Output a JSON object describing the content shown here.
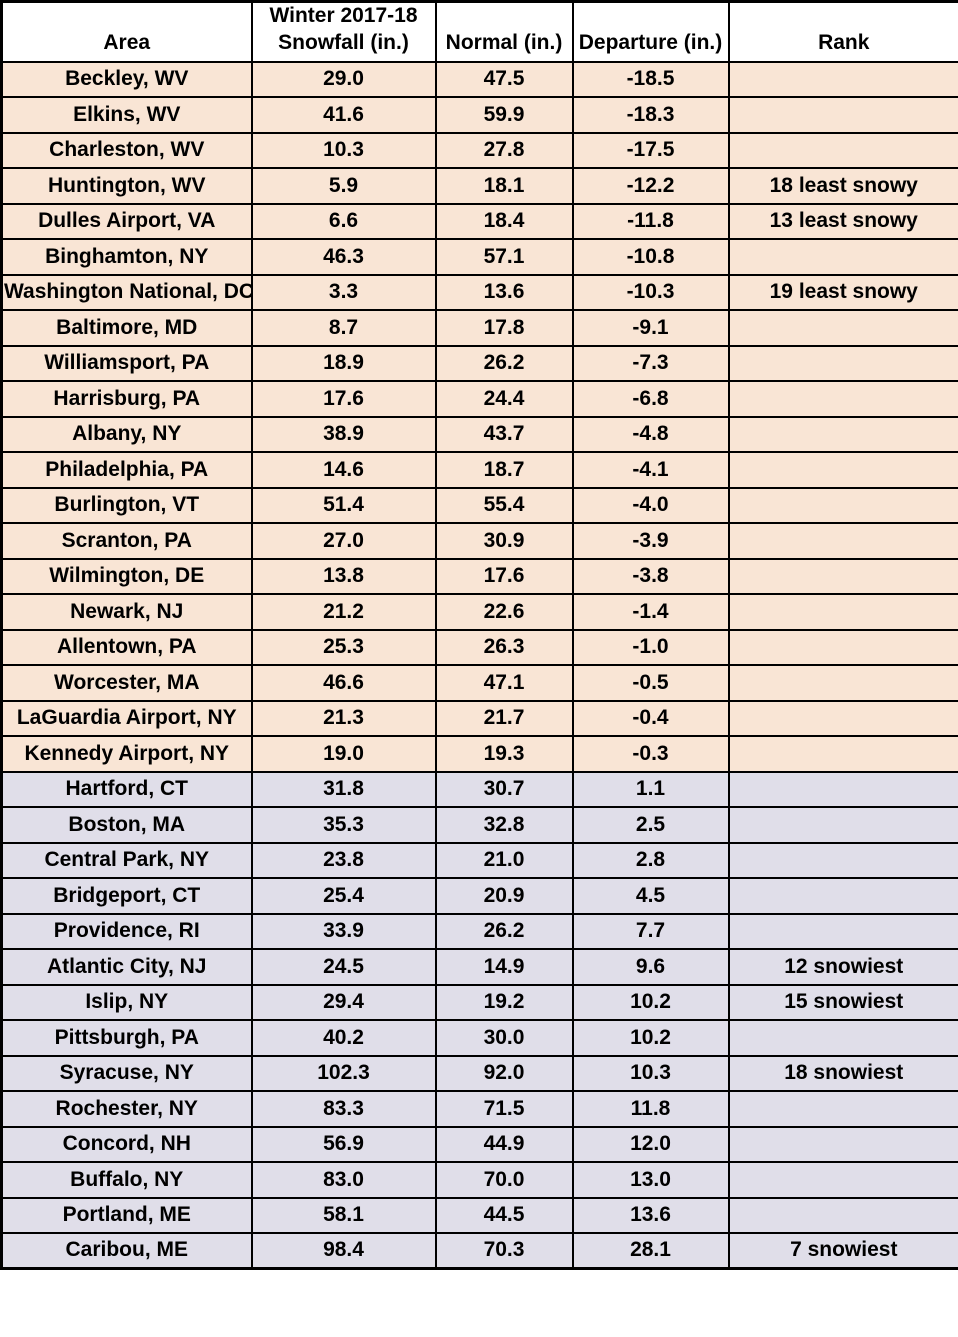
{
  "chart_data": {
    "type": "table",
    "columns": [
      "Area",
      "Winter 2017-18\nSnowfall (in.)",
      "Normal (in.)",
      "Departure (in.)",
      "Rank"
    ],
    "rows": [
      {
        "area": "Beckley, WV",
        "snowfall": "29.0",
        "normal": "47.5",
        "departure": "-18.5",
        "rank": "",
        "shade": "tan"
      },
      {
        "area": "Elkins, WV",
        "snowfall": "41.6",
        "normal": "59.9",
        "departure": "-18.3",
        "rank": "",
        "shade": "tan"
      },
      {
        "area": "Charleston, WV",
        "snowfall": "10.3",
        "normal": "27.8",
        "departure": "-17.5",
        "rank": "",
        "shade": "tan"
      },
      {
        "area": "Huntington, WV",
        "snowfall": "5.9",
        "normal": "18.1",
        "departure": "-12.2",
        "rank": "18 least snowy",
        "shade": "tan"
      },
      {
        "area": "Dulles Airport, VA",
        "snowfall": "6.6",
        "normal": "18.4",
        "departure": "-11.8",
        "rank": "13 least snowy",
        "shade": "tan"
      },
      {
        "area": "Binghamton, NY",
        "snowfall": "46.3",
        "normal": "57.1",
        "departure": "-10.8",
        "rank": "",
        "shade": "tan"
      },
      {
        "area": "Washington National, DC",
        "snowfall": "3.3",
        "normal": "13.6",
        "departure": "-10.3",
        "rank": "19 least snowy",
        "shade": "tan"
      },
      {
        "area": "Baltimore, MD",
        "snowfall": "8.7",
        "normal": "17.8",
        "departure": "-9.1",
        "rank": "",
        "shade": "tan"
      },
      {
        "area": "Williamsport, PA",
        "snowfall": "18.9",
        "normal": "26.2",
        "departure": "-7.3",
        "rank": "",
        "shade": "tan"
      },
      {
        "area": "Harrisburg, PA",
        "snowfall": "17.6",
        "normal": "24.4",
        "departure": "-6.8",
        "rank": "",
        "shade": "tan"
      },
      {
        "area": "Albany, NY",
        "snowfall": "38.9",
        "normal": "43.7",
        "departure": "-4.8",
        "rank": "",
        "shade": "tan"
      },
      {
        "area": "Philadelphia, PA",
        "snowfall": "14.6",
        "normal": "18.7",
        "departure": "-4.1",
        "rank": "",
        "shade": "tan"
      },
      {
        "area": "Burlington, VT",
        "snowfall": "51.4",
        "normal": "55.4",
        "departure": "-4.0",
        "rank": "",
        "shade": "tan"
      },
      {
        "area": "Scranton, PA",
        "snowfall": "27.0",
        "normal": "30.9",
        "departure": "-3.9",
        "rank": "",
        "shade": "tan"
      },
      {
        "area": "Wilmington, DE",
        "snowfall": "13.8",
        "normal": "17.6",
        "departure": "-3.8",
        "rank": "",
        "shade": "tan"
      },
      {
        "area": "Newark, NJ",
        "snowfall": "21.2",
        "normal": "22.6",
        "departure": "-1.4",
        "rank": "",
        "shade": "tan"
      },
      {
        "area": "Allentown, PA",
        "snowfall": "25.3",
        "normal": "26.3",
        "departure": "-1.0",
        "rank": "",
        "shade": "tan"
      },
      {
        "area": "Worcester, MA",
        "snowfall": "46.6",
        "normal": "47.1",
        "departure": "-0.5",
        "rank": "",
        "shade": "tan"
      },
      {
        "area": "LaGuardia Airport, NY",
        "snowfall": "21.3",
        "normal": "21.7",
        "departure": "-0.4",
        "rank": "",
        "shade": "tan"
      },
      {
        "area": "Kennedy Airport, NY",
        "snowfall": "19.0",
        "normal": "19.3",
        "departure": "-0.3",
        "rank": "",
        "shade": "tan"
      },
      {
        "area": "Hartford, CT",
        "snowfall": "31.8",
        "normal": "30.7",
        "departure": "1.1",
        "rank": "",
        "shade": "lavender"
      },
      {
        "area": "Boston, MA",
        "snowfall": "35.3",
        "normal": "32.8",
        "departure": "2.5",
        "rank": "",
        "shade": "lavender"
      },
      {
        "area": "Central Park, NY",
        "snowfall": "23.8",
        "normal": "21.0",
        "departure": "2.8",
        "rank": "",
        "shade": "lavender"
      },
      {
        "area": "Bridgeport, CT",
        "snowfall": "25.4",
        "normal": "20.9",
        "departure": "4.5",
        "rank": "",
        "shade": "lavender"
      },
      {
        "area": "Providence, RI",
        "snowfall": "33.9",
        "normal": "26.2",
        "departure": "7.7",
        "rank": "",
        "shade": "lavender"
      },
      {
        "area": "Atlantic City, NJ",
        "snowfall": "24.5",
        "normal": "14.9",
        "departure": "9.6",
        "rank": "12 snowiest",
        "shade": "lavender"
      },
      {
        "area": "Islip, NY",
        "snowfall": "29.4",
        "normal": "19.2",
        "departure": "10.2",
        "rank": "15 snowiest",
        "shade": "lavender"
      },
      {
        "area": "Pittsburgh, PA",
        "snowfall": "40.2",
        "normal": "30.0",
        "departure": "10.2",
        "rank": "",
        "shade": "lavender"
      },
      {
        "area": "Syracuse, NY",
        "snowfall": "102.3",
        "normal": "92.0",
        "departure": "10.3",
        "rank": "18 snowiest",
        "shade": "lavender"
      },
      {
        "area": "Rochester, NY",
        "snowfall": "83.3",
        "normal": "71.5",
        "departure": "11.8",
        "rank": "",
        "shade": "lavender"
      },
      {
        "area": "Concord, NH",
        "snowfall": "56.9",
        "normal": "44.9",
        "departure": "12.0",
        "rank": "",
        "shade": "lavender"
      },
      {
        "area": "Buffalo, NY",
        "snowfall": "83.0",
        "normal": "70.0",
        "departure": "13.0",
        "rank": "",
        "shade": "lavender"
      },
      {
        "area": "Portland, ME",
        "snowfall": "58.1",
        "normal": "44.5",
        "departure": "13.6",
        "rank": "",
        "shade": "lavender"
      },
      {
        "area": "Caribou, ME",
        "snowfall": "98.4",
        "normal": "70.3",
        "departure": "28.1",
        "rank": "7 snowiest",
        "shade": "lavender"
      }
    ],
    "layout_hints": {
      "tan_rows_meaning": "below-normal departure",
      "lavender_rows_meaning": "above-normal departure"
    }
  },
  "colors": {
    "below_normal_bg": "#F9E5D5",
    "above_normal_bg": "#E0DEE9",
    "header_bg": "#FFFFFF",
    "border": "#000000",
    "text": "#000000"
  }
}
